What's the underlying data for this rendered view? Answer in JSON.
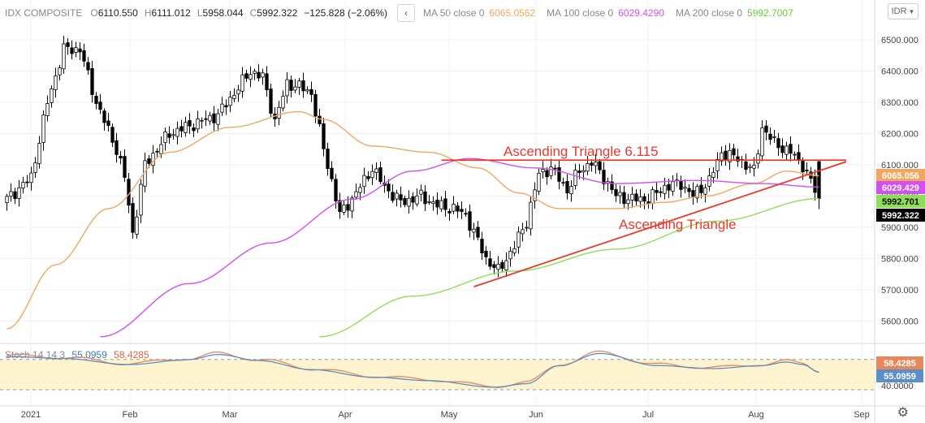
{
  "legend": {
    "symbol": "IDX COMPOSITE",
    "open_key": "O",
    "open": "6110.550",
    "high_key": "H",
    "high": "6111.012",
    "low_key": "L",
    "low": "5958.044",
    "close_key": "C",
    "close": "5992.322",
    "change": "−125.828 (−2.06%)",
    "hide_icon": "chevron-left-icon",
    "ma50_label": "MA 50 close 0",
    "ma50_value": "6065.0562",
    "ma100_label": "MA 100 close 0",
    "ma100_value": "6029.4290",
    "ma200_label": "MA 200 close 0",
    "ma200_value": "5992.7007"
  },
  "currency": "IDR",
  "stoch": {
    "label": "Stoch 14 14 3",
    "k": "55.0959",
    "d": "58.4285"
  },
  "settings_icon": "gear-icon",
  "colors": {
    "up": "#ffffff",
    "down": "#000000",
    "ma50": "#f0a860",
    "ma100": "#d44ff0",
    "ma200": "#8ede5a",
    "trend": "#e8392a",
    "stoch_k": "#5b8fc5",
    "stoch_d": "#e8885a",
    "stoch_band": "#fdf4cf"
  },
  "chart_data": {
    "type": "candlestick",
    "price_axis": {
      "ticks": [
        6500,
        6400,
        6300,
        6200,
        6100,
        6000,
        5900,
        5800,
        5700,
        5600
      ],
      "labels": [
        "6500.000",
        "6400.000",
        "6300.000",
        "6200.000",
        "6100.000",
        "6000.000",
        "5900.000",
        "5800.000",
        "5700.000",
        "5600.000"
      ]
    },
    "time_axis": [
      "2021",
      "Feb",
      "Mar",
      "Apr",
      "May",
      "Jun",
      "Jul",
      "Aug",
      "Sep"
    ],
    "price_tags": [
      {
        "text": "6065.056",
        "value": 6065.056,
        "color": "#f0a860"
      },
      {
        "text": "6029.429",
        "value": 6029.429,
        "color": "#d44ff0"
      },
      {
        "text": "5992.701",
        "value": 5992.701,
        "color": "#8ede5a"
      },
      {
        "text": "5992.322",
        "value": 5992.322,
        "color": "#000000"
      }
    ],
    "stoch_axis": {
      "labels": [
        "40.0000"
      ]
    },
    "stoch_tags": [
      {
        "text": "58.4285",
        "color": "#e8885a"
      },
      {
        "text": "55.0959",
        "color": "#5b8fc5"
      }
    ],
    "annotations": [
      {
        "text": "Ascending Triangle  6.115",
        "color": "#e8392a"
      },
      {
        "text": "Ascending Triangle",
        "color": "#e8392a"
      }
    ],
    "resistance_level": 6115,
    "grid": true
  }
}
